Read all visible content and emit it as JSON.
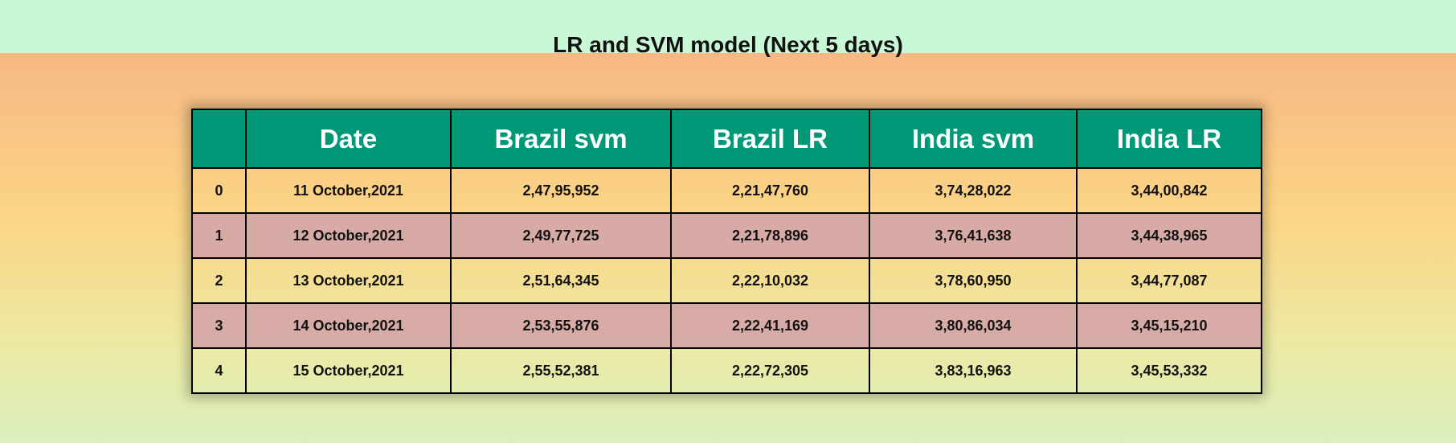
{
  "page": {
    "title": "LR and SVM model (Next 5 days)"
  },
  "table": {
    "columns": [
      "",
      "Date",
      "Brazil svm",
      "Brazil LR",
      "India svm",
      "India LR"
    ],
    "rows": [
      {
        "index": "0",
        "date": "11 October,2021",
        "brazil_svm": "2,47,95,952",
        "brazil_lr": "2,21,47,760",
        "india_svm": "3,74,28,022",
        "india_lr": "3,44,00,842"
      },
      {
        "index": "1",
        "date": "12 October,2021",
        "brazil_svm": "2,49,77,725",
        "brazil_lr": "2,21,78,896",
        "india_svm": "3,76,41,638",
        "india_lr": "3,44,38,965"
      },
      {
        "index": "2",
        "date": "13 October,2021",
        "brazil_svm": "2,51,64,345",
        "brazil_lr": "2,22,10,032",
        "india_svm": "3,78,60,950",
        "india_lr": "3,44,77,087"
      },
      {
        "index": "3",
        "date": "14 October,2021",
        "brazil_svm": "2,53,55,876",
        "brazil_lr": "2,22,41,169",
        "india_svm": "3,80,86,034",
        "india_lr": "3,45,15,210"
      },
      {
        "index": "4",
        "date": "15 October,2021",
        "brazil_svm": "2,55,52,381",
        "brazil_lr": "2,22,72,305",
        "india_svm": "3,83,16,963",
        "india_lr": "3,45,53,332"
      }
    ]
  },
  "colors": {
    "header_bg": "#009877",
    "header_text": "#ffffff",
    "alt_row_bg": "#d6a8a8",
    "top_band": "#c8f8d5"
  }
}
